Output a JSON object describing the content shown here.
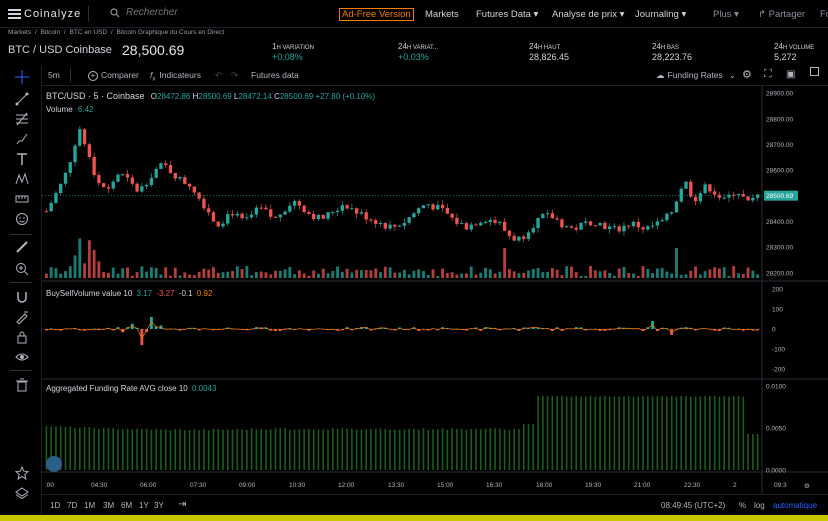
{
  "nav": {
    "logo": "Coinalyze",
    "search_placeholder": "Rechercher",
    "adfree": "Ad-Free Version",
    "markets": "Markets",
    "futures": "Futures Data ▾",
    "analyse": "Analyse de prix ▾",
    "journaling": "Journaling ▾",
    "plus": "Plus ▾",
    "partager": "Partager",
    "fr": "Fr"
  },
  "breadcrumb": [
    "Markets",
    "/",
    "Bitcoin",
    "/",
    "BTC en USD",
    "/",
    "Bitcoin Graphique du Cours en Direct"
  ],
  "ticker": {
    "name": "BTC / USD Coinbase",
    "price": "28,500.69",
    "stats": [
      {
        "label_big": "1",
        "label_small": "H VARIATION",
        "value": "+0.08%",
        "green": true
      },
      {
        "label_big": "24",
        "label_small": "H VARIAT...",
        "value": "+0.03%",
        "green": true
      },
      {
        "label_big": "24",
        "label_small": "H HAUT",
        "value": "28,826.45",
        "green": false
      },
      {
        "label_big": "24",
        "label_small": "H BAS",
        "value": "28,223.76",
        "green": false
      },
      {
        "label_big": "24",
        "label_small": "H VOLUME",
        "value": "5,272",
        "green": false
      }
    ]
  },
  "toolbar": {
    "interval": "5m",
    "compare": "Comparer",
    "indicators": "Indicateurs",
    "futures_data": "Futures data",
    "funding_rates": "Funding Rates"
  },
  "legend": {
    "symbol": "BTC/USD · 5 · Coinbase",
    "o_label": "O",
    "o": "28472.86",
    "h_label": "H",
    "h": "28500.69",
    "l_label": "L",
    "l": "28472.14",
    "c_label": "C",
    "c": "28500.69",
    "change": "+27.80 (+0.10%)",
    "volume_label": "Volume",
    "volume": "6.42",
    "bsv_label": "BuySellVolume value 10",
    "bsv_1": "3.17",
    "bsv_2": "-3.27",
    "bsv_3": "-0.1",
    "bsv_4": "0.92",
    "funding_label": "Aggregated Funding Rate AVG close 10",
    "funding": "0.0043"
  },
  "price_axis": [
    "28900.00",
    "28800.00",
    "28700.00",
    "28600.00",
    "28500.69",
    "28400.00",
    "28300.00",
    "28200.00"
  ],
  "bsv_axis": [
    "200",
    "100",
    "0",
    "-100",
    "-200"
  ],
  "funding_axis": [
    "0.0100",
    "0.0050",
    "0.0000"
  ],
  "time_axis": [
    ":00",
    "04:30",
    "06:00",
    "07:30",
    "09:00",
    "10:30",
    "12:00",
    "13:30",
    "15:00",
    "16:30",
    "18:00",
    "19:30",
    "21:00",
    "22:30",
    "2",
    "09:3"
  ],
  "bottom": {
    "ranges": [
      "1D",
      "7D",
      "1M",
      "3M",
      "6M",
      "1Y",
      "3Y"
    ],
    "time": "08:49:45 (UTC+2)",
    "pct": "%",
    "log": "log",
    "auto": "automatique"
  },
  "colors": {
    "up": "#26a69a",
    "down": "#ef5350",
    "orange": "#f57c00",
    "funding": "#1e5c1e",
    "price_tag": "#26a69a"
  },
  "chart_data": {
    "type": "candlestick",
    "price_range": [
      28180,
      28920
    ],
    "current_price": 28500.69,
    "close_path": [
      28440,
      28480,
      28520,
      28560,
      28620,
      28700,
      28760,
      28690,
      28620,
      28560,
      28540,
      28520,
      28560,
      28590,
      28570,
      28550,
      28520,
      28530,
      28560,
      28590,
      28610,
      28620,
      28600,
      28580,
      28560,
      28550,
      28540,
      28500,
      28470,
      28440,
      28400,
      28390,
      28420,
      28440,
      28420,
      28400,
      28410,
      28430,
      28450,
      28440,
      28420,
      28410,
      28440,
      28460,
      28480,
      28470,
      28450,
      28430,
      28420,
      28410,
      28420,
      28440,
      28450,
      28470,
      28460,
      28440,
      28430,
      28420,
      28410,
      28400,
      28390,
      28380,
      28380,
      28390,
      28400,
      28420,
      28440,
      28460,
      28470,
      28460,
      28450,
      28440,
      28420,
      28400,
      28390,
      28380,
      28390,
      28400,
      28410,
      28410,
      28400,
      28390,
      28360,
      28340,
      28330,
      28340,
      28370,
      28390,
      28410,
      28420,
      28420,
      28410,
      28390,
      28380,
      28370,
      28380,
      28390,
      28400,
      28400,
      28390,
      28380,
      28370,
      28370,
      28380,
      28390,
      28390,
      28380,
      28370,
      28380,
      28390,
      28400,
      28420,
      28450,
      28520,
      28560,
      28510,
      28490,
      28520,
      28540,
      28520,
      28500,
      28480,
      28500,
      28520,
      28510,
      28470,
      28480,
      28500
    ]
  }
}
